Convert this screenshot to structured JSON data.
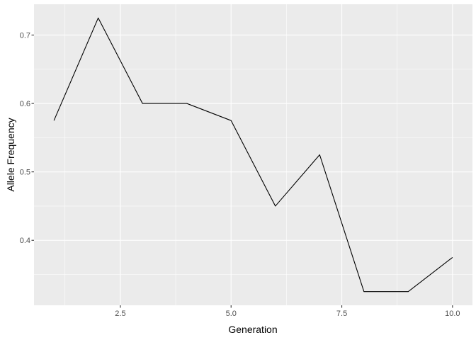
{
  "chart_data": {
    "type": "line",
    "title": "",
    "xlabel": "Generation",
    "ylabel": "Allele Frequency",
    "x": [
      1,
      2,
      3,
      4,
      5,
      6,
      7,
      8,
      9,
      10
    ],
    "series": [
      {
        "values": [
          0.575,
          0.725,
          0.6,
          0.6,
          0.575,
          0.45,
          0.525,
          0.325,
          0.325,
          0.375
        ],
        "color": "#000000"
      }
    ],
    "xlim": [
      0.55,
      10.45
    ],
    "ylim": [
      0.305,
      0.745
    ],
    "x_ticks": [
      2.5,
      5.0,
      7.5,
      10.0
    ],
    "x_tick_labels": [
      "2.5",
      "5.0",
      "7.5",
      "10.0"
    ],
    "x_minor_ticks": [
      1.25,
      3.75,
      6.25,
      8.75
    ],
    "y_ticks": [
      0.4,
      0.5,
      0.6,
      0.7
    ],
    "y_tick_labels": [
      "0.4",
      "0.5",
      "0.6",
      "0.7"
    ],
    "y_minor_ticks": [
      0.35,
      0.45,
      0.55,
      0.65
    ],
    "grid": true,
    "legend": "none",
    "panel_background": "#ebebeb",
    "grid_color": "#ffffff"
  }
}
